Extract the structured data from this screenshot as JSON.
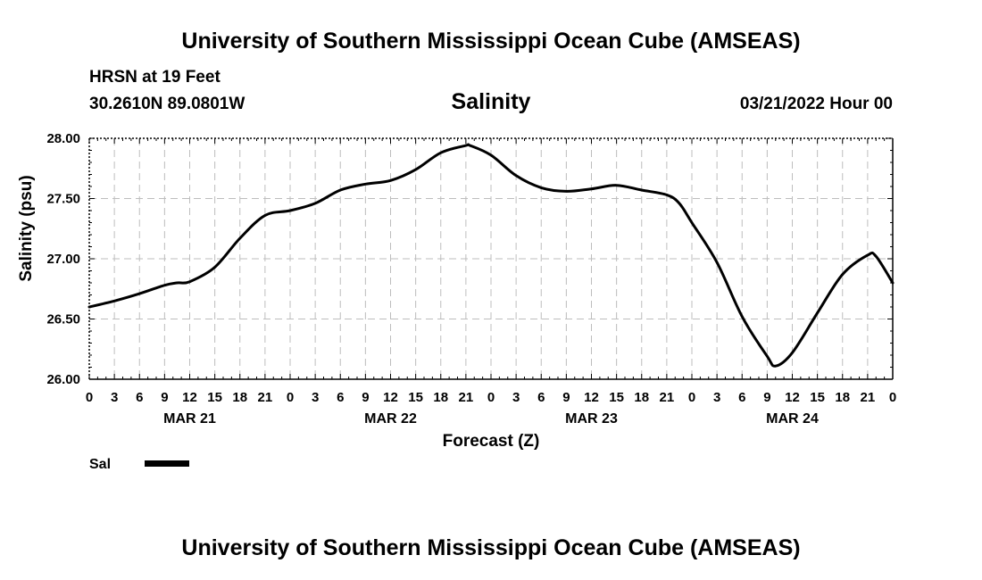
{
  "header": {
    "title": "University of Southern Mississippi Ocean Cube (AMSEAS)",
    "station": "HRSN at 19 Feet",
    "coords": "30.2610N  89.0801W",
    "date": "03/21/2022 Hour 00"
  },
  "footer": {
    "title": "University of Southern Mississippi Ocean Cube (AMSEAS)"
  },
  "chart_data": {
    "type": "line",
    "title": "Salinity",
    "xlabel": "Forecast (Z)",
    "ylabel": "Salinity (psu)",
    "ylim": [
      26.0,
      28.0
    ],
    "xlim": [
      0,
      96
    ],
    "yticks": [
      26.0,
      26.5,
      27.0,
      27.5,
      28.0
    ],
    "ytick_labels": [
      "26.00",
      "26.50",
      "27.00",
      "27.50",
      "28.00"
    ],
    "xtick_hours": [
      0,
      3,
      6,
      9,
      12,
      15,
      18,
      21,
      24,
      27,
      30,
      33,
      36,
      39,
      42,
      45,
      48,
      51,
      54,
      57,
      60,
      63,
      66,
      69,
      72,
      75,
      78,
      81,
      84,
      87,
      90,
      93,
      96
    ],
    "xtick_labels": [
      "0",
      "3",
      "6",
      "9",
      "12",
      "15",
      "18",
      "21",
      "0",
      "3",
      "6",
      "9",
      "12",
      "15",
      "18",
      "21",
      "0",
      "3",
      "6",
      "9",
      "12",
      "15",
      "18",
      "21",
      "0",
      "3",
      "6",
      "9",
      "12",
      "15",
      "18",
      "21",
      "0"
    ],
    "day_labels": [
      {
        "hour": 12,
        "label": "MAR 21"
      },
      {
        "hour": 36,
        "label": "MAR 22"
      },
      {
        "hour": 60,
        "label": "MAR 23"
      },
      {
        "hour": 84,
        "label": "MAR 24"
      }
    ],
    "grid": true,
    "legend": {
      "position": "bottom-left",
      "entries": [
        {
          "label": "Sal",
          "color": "#000000"
        }
      ]
    },
    "series": [
      {
        "name": "Sal",
        "color": "#000000",
        "x": [
          0,
          3,
          6,
          9,
          10.5,
          12,
          15,
          18,
          21,
          24,
          27,
          30,
          33,
          36,
          39,
          42,
          45,
          45.5,
          48,
          51,
          54,
          57,
          60,
          63,
          66,
          69,
          70.5,
          72,
          75,
          78,
          81,
          82,
          84,
          87,
          90,
          93,
          94,
          96
        ],
        "values": [
          26.6,
          26.65,
          26.71,
          26.78,
          26.8,
          26.81,
          26.93,
          27.17,
          27.36,
          27.4,
          27.46,
          27.57,
          27.62,
          27.65,
          27.74,
          27.88,
          27.94,
          27.94,
          27.86,
          27.69,
          27.59,
          27.56,
          27.58,
          27.61,
          27.57,
          27.53,
          27.46,
          27.3,
          26.97,
          26.52,
          26.19,
          26.11,
          26.22,
          26.55,
          26.87,
          27.03,
          27.02,
          26.8
        ]
      }
    ]
  }
}
